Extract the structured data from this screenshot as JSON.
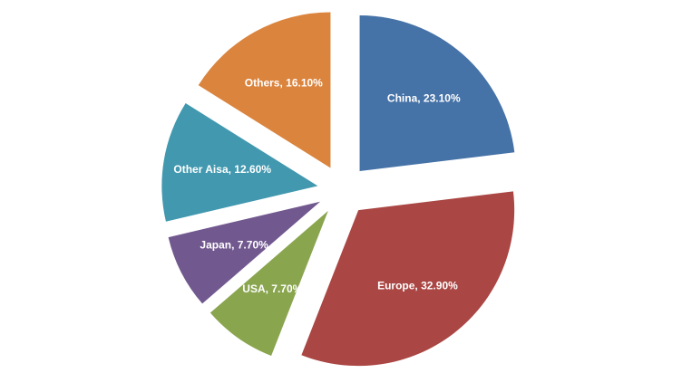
{
  "chart_data": {
    "type": "pie",
    "labels": [
      "China, 23.10%",
      "Europe, 32.90%",
      "USA, 7.70%",
      "Japan, 7.70%",
      "Other Aisa, 12.60%",
      "Others, 16.10%"
    ],
    "values": [
      23.1,
      32.9,
      7.7,
      7.7,
      12.6,
      16.1
    ],
    "colors": [
      "#4572a7",
      "#aa4643",
      "#89a54e",
      "#71588f",
      "#4198af",
      "#db843d"
    ],
    "exploded": true
  }
}
